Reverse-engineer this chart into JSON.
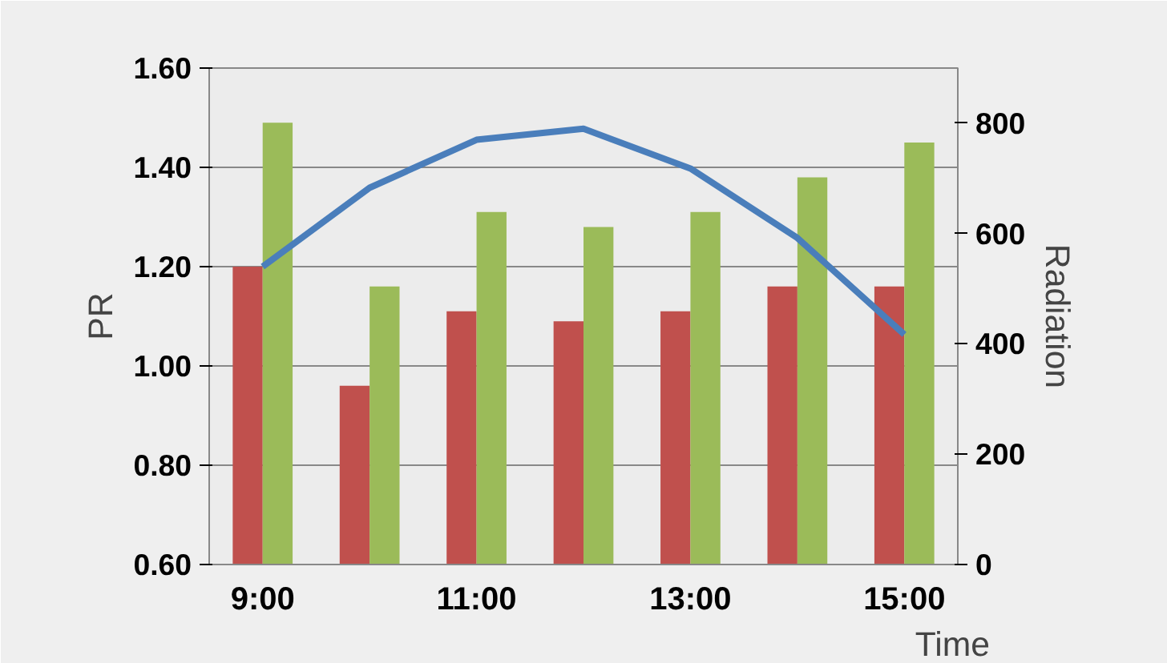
{
  "chart_data": {
    "type": "bar",
    "xlabel": "Time",
    "ylabel": "PR",
    "y2label": "Radiation",
    "categories": [
      "9:00",
      null,
      "11:00",
      null,
      "13:00",
      null,
      "15:00"
    ],
    "series": [
      {
        "color": "#c0504d",
        "values": [
          1.2,
          0.96,
          1.11,
          1.09,
          1.11,
          1.16,
          1.16
        ]
      },
      {
        "color": "#9bbb59",
        "values": [
          1.49,
          1.16,
          1.31,
          1.28,
          1.31,
          1.38,
          1.45
        ]
      },
      {
        "type": "line",
        "axis": "y2",
        "color": "#4a7ebb",
        "values": [
          540,
          683,
          770,
          790,
          718,
          592,
          417
        ]
      }
    ],
    "ylim": [
      0.6,
      1.6
    ],
    "yticks": [
      {
        "value": 0.6,
        "label": "0.60"
      },
      {
        "value": 0.8,
        "label": "0.80"
      },
      {
        "value": 1.0,
        "label": "1.00"
      },
      {
        "value": 1.2,
        "label": "1.20"
      },
      {
        "value": 1.4,
        "label": "1.40"
      },
      {
        "value": 1.6,
        "label": "1.60"
      }
    ],
    "y2lim": [
      0,
      900
    ],
    "y2ticks": [
      0,
      200,
      400,
      600,
      800
    ],
    "grid": "y"
  }
}
